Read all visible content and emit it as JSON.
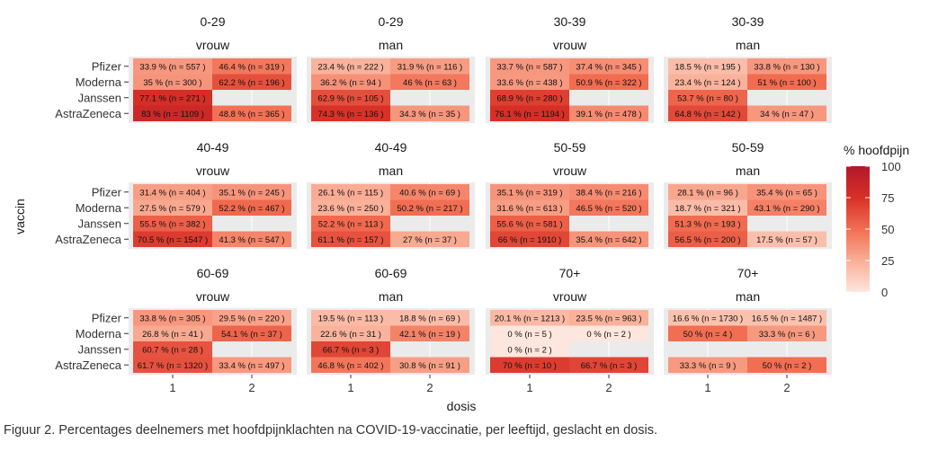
{
  "figure": {
    "caption": "Figuur 2. Percentages deelnemers met hoofdpijnklachten na COVID-19-vaccinatie, per leeftijd, geslacht en dosis."
  },
  "chart_data": {
    "type": "heatmap",
    "xlabel": "dosis",
    "ylabel": "vaccin",
    "x_categories": [
      "1",
      "2"
    ],
    "y_categories": [
      "Pfizer",
      "Moderna",
      "Janssen",
      "AstraZeneca"
    ],
    "legend": {
      "title": "% hoofdpijn",
      "ticks": [
        0,
        25,
        50,
        75,
        100
      ],
      "range": [
        0,
        100
      ],
      "color_low": "#fde6de",
      "color_high": "#b2182b",
      "position": "right"
    },
    "panels": [
      {
        "age": "0-29",
        "sex": "vrouw",
        "cells": [
          {
            "vaccine": "Pfizer",
            "dose": "1",
            "pct": 33.9,
            "n": 557,
            "label": "33.9 % (n = 557 )"
          },
          {
            "vaccine": "Pfizer",
            "dose": "2",
            "pct": 46.4,
            "n": 319,
            "label": "46.4 % (n = 319 )"
          },
          {
            "vaccine": "Moderna",
            "dose": "1",
            "pct": 35,
            "n": 300,
            "label": "35 % (n = 300 )"
          },
          {
            "vaccine": "Moderna",
            "dose": "2",
            "pct": 62.2,
            "n": 196,
            "label": "62.2 % (n = 196 )"
          },
          {
            "vaccine": "Janssen",
            "dose": "1",
            "pct": 77.1,
            "n": 271,
            "label": "77.1 % (n = 271 )"
          },
          {
            "vaccine": "AstraZeneca",
            "dose": "1",
            "pct": 83,
            "n": 1109,
            "label": "83 % (n = 1109 )"
          },
          {
            "vaccine": "AstraZeneca",
            "dose": "2",
            "pct": 48.8,
            "n": 365,
            "label": "48.8 % (n = 365 )"
          }
        ]
      },
      {
        "age": "0-29",
        "sex": "man",
        "cells": [
          {
            "vaccine": "Pfizer",
            "dose": "1",
            "pct": 23.4,
            "n": 222,
            "label": "23.4 % (n = 222 )"
          },
          {
            "vaccine": "Pfizer",
            "dose": "2",
            "pct": 31.9,
            "n": 116,
            "label": "31.9 % (n = 116 )"
          },
          {
            "vaccine": "Moderna",
            "dose": "1",
            "pct": 36.2,
            "n": 94,
            "label": "36.2 % (n = 94 )"
          },
          {
            "vaccine": "Moderna",
            "dose": "2",
            "pct": 46,
            "n": 63,
            "label": "46 % (n = 63 )"
          },
          {
            "vaccine": "Janssen",
            "dose": "1",
            "pct": 62.9,
            "n": 105,
            "label": "62.9 % (n = 105 )"
          },
          {
            "vaccine": "AstraZeneca",
            "dose": "1",
            "pct": 74.3,
            "n": 136,
            "label": "74.3 % (n = 136 )"
          },
          {
            "vaccine": "AstraZeneca",
            "dose": "2",
            "pct": 34.3,
            "n": 35,
            "label": "34.3 % (n = 35 )"
          }
        ]
      },
      {
        "age": "30-39",
        "sex": "vrouw",
        "cells": [
          {
            "vaccine": "Pfizer",
            "dose": "1",
            "pct": 33.7,
            "n": 587,
            "label": "33.7 % (n = 587 )"
          },
          {
            "vaccine": "Pfizer",
            "dose": "2",
            "pct": 37.4,
            "n": 345,
            "label": "37.4 % (n = 345 )"
          },
          {
            "vaccine": "Moderna",
            "dose": "1",
            "pct": 33.6,
            "n": 438,
            "label": "33.6 % (n = 438 )"
          },
          {
            "vaccine": "Moderna",
            "dose": "2",
            "pct": 50.9,
            "n": 322,
            "label": "50.9 % (n = 322 )"
          },
          {
            "vaccine": "Janssen",
            "dose": "1",
            "pct": 68.9,
            "n": 280,
            "label": "68.9 % (n = 280 )"
          },
          {
            "vaccine": "AstraZeneca",
            "dose": "1",
            "pct": 76.1,
            "n": 1194,
            "label": "76.1 % (n = 1194 )"
          },
          {
            "vaccine": "AstraZeneca",
            "dose": "2",
            "pct": 39.1,
            "n": 478,
            "label": "39.1 % (n = 478 )"
          }
        ]
      },
      {
        "age": "30-39",
        "sex": "man",
        "cells": [
          {
            "vaccine": "Pfizer",
            "dose": "1",
            "pct": 18.5,
            "n": 195,
            "label": "18.5 % (n = 195 )"
          },
          {
            "vaccine": "Pfizer",
            "dose": "2",
            "pct": 33.8,
            "n": 130,
            "label": "33.8 % (n = 130 )"
          },
          {
            "vaccine": "Moderna",
            "dose": "1",
            "pct": 23.4,
            "n": 124,
            "label": "23.4 % (n = 124 )"
          },
          {
            "vaccine": "Moderna",
            "dose": "2",
            "pct": 51,
            "n": 100,
            "label": "51 % (n = 100 )"
          },
          {
            "vaccine": "Janssen",
            "dose": "1",
            "pct": 53.7,
            "n": 80,
            "label": "53.7 % (n = 80 )"
          },
          {
            "vaccine": "AstraZeneca",
            "dose": "1",
            "pct": 64.8,
            "n": 142,
            "label": "64.8 % (n = 142 )"
          },
          {
            "vaccine": "AstraZeneca",
            "dose": "2",
            "pct": 34,
            "n": 47,
            "label": "34 % (n = 47 )"
          }
        ]
      },
      {
        "age": "40-49",
        "sex": "vrouw",
        "cells": [
          {
            "vaccine": "Pfizer",
            "dose": "1",
            "pct": 31.4,
            "n": 404,
            "label": "31.4 % (n = 404 )"
          },
          {
            "vaccine": "Pfizer",
            "dose": "2",
            "pct": 35.1,
            "n": 245,
            "label": "35.1 % (n = 245 )"
          },
          {
            "vaccine": "Moderna",
            "dose": "1",
            "pct": 27.5,
            "n": 579,
            "label": "27.5 % (n = 579 )"
          },
          {
            "vaccine": "Moderna",
            "dose": "2",
            "pct": 52.2,
            "n": 467,
            "label": "52.2 % (n = 467 )"
          },
          {
            "vaccine": "Janssen",
            "dose": "1",
            "pct": 55.5,
            "n": 382,
            "label": "55.5 % (n = 382 )"
          },
          {
            "vaccine": "AstraZeneca",
            "dose": "1",
            "pct": 70.5,
            "n": 1547,
            "label": "70.5 % (n = 1547 )"
          },
          {
            "vaccine": "AstraZeneca",
            "dose": "2",
            "pct": 41.3,
            "n": 547,
            "label": "41.3 % (n = 547 )"
          }
        ]
      },
      {
        "age": "40-49",
        "sex": "man",
        "cells": [
          {
            "vaccine": "Pfizer",
            "dose": "1",
            "pct": 26.1,
            "n": 115,
            "label": "26.1 % (n = 115 )"
          },
          {
            "vaccine": "Pfizer",
            "dose": "2",
            "pct": 40.6,
            "n": 69,
            "label": "40.6 % (n = 69 )"
          },
          {
            "vaccine": "Moderna",
            "dose": "1",
            "pct": 23.6,
            "n": 250,
            "label": "23.6 % (n = 250 )"
          },
          {
            "vaccine": "Moderna",
            "dose": "2",
            "pct": 50.2,
            "n": 217,
            "label": "50.2 % (n = 217 )"
          },
          {
            "vaccine": "Janssen",
            "dose": "1",
            "pct": 52.2,
            "n": 113,
            "label": "52.2 % (n = 113 )"
          },
          {
            "vaccine": "AstraZeneca",
            "dose": "1",
            "pct": 61.1,
            "n": 157,
            "label": "61.1 % (n = 157 )"
          },
          {
            "vaccine": "AstraZeneca",
            "dose": "2",
            "pct": 27,
            "n": 37,
            "label": "27 % (n = 37 )"
          }
        ]
      },
      {
        "age": "50-59",
        "sex": "vrouw",
        "cells": [
          {
            "vaccine": "Pfizer",
            "dose": "1",
            "pct": 35.1,
            "n": 319,
            "label": "35.1 % (n = 319 )"
          },
          {
            "vaccine": "Pfizer",
            "dose": "2",
            "pct": 38.4,
            "n": 216,
            "label": "38.4 % (n = 216 )"
          },
          {
            "vaccine": "Moderna",
            "dose": "1",
            "pct": 31.6,
            "n": 613,
            "label": "31.6 % (n = 613 )"
          },
          {
            "vaccine": "Moderna",
            "dose": "2",
            "pct": 46.5,
            "n": 520,
            "label": "46.5 % (n = 520 )"
          },
          {
            "vaccine": "Janssen",
            "dose": "1",
            "pct": 55.6,
            "n": 581,
            "label": "55.6 % (n = 581 )"
          },
          {
            "vaccine": "AstraZeneca",
            "dose": "1",
            "pct": 66,
            "n": 1910,
            "label": "66 % (n = 1910 )"
          },
          {
            "vaccine": "AstraZeneca",
            "dose": "2",
            "pct": 35.4,
            "n": 642,
            "label": "35.4 % (n = 642 )"
          }
        ]
      },
      {
        "age": "50-59",
        "sex": "man",
        "cells": [
          {
            "vaccine": "Pfizer",
            "dose": "1",
            "pct": 28.1,
            "n": 96,
            "label": "28.1 % (n = 96 )"
          },
          {
            "vaccine": "Pfizer",
            "dose": "2",
            "pct": 35.4,
            "n": 65,
            "label": "35.4 % (n = 65 )"
          },
          {
            "vaccine": "Moderna",
            "dose": "1",
            "pct": 18.7,
            "n": 321,
            "label": "18.7 % (n = 321 )"
          },
          {
            "vaccine": "Moderna",
            "dose": "2",
            "pct": 43.1,
            "n": 290,
            "label": "43.1 % (n = 290 )"
          },
          {
            "vaccine": "Janssen",
            "dose": "1",
            "pct": 51.3,
            "n": 193,
            "label": "51.3 % (n = 193 )"
          },
          {
            "vaccine": "AstraZeneca",
            "dose": "1",
            "pct": 56.5,
            "n": 200,
            "label": "56.5 % (n = 200 )"
          },
          {
            "vaccine": "AstraZeneca",
            "dose": "2",
            "pct": 17.5,
            "n": 57,
            "label": "17.5 % (n = 57 )"
          }
        ]
      },
      {
        "age": "60-69",
        "sex": "vrouw",
        "cells": [
          {
            "vaccine": "Pfizer",
            "dose": "1",
            "pct": 33.8,
            "n": 305,
            "label": "33.8 % (n = 305 )"
          },
          {
            "vaccine": "Pfizer",
            "dose": "2",
            "pct": 29.5,
            "n": 220,
            "label": "29.5 % (n = 220 )"
          },
          {
            "vaccine": "Moderna",
            "dose": "1",
            "pct": 26.8,
            "n": 41,
            "label": "26.8 % (n = 41 )"
          },
          {
            "vaccine": "Moderna",
            "dose": "2",
            "pct": 54.1,
            "n": 37,
            "label": "54.1 % (n = 37 )"
          },
          {
            "vaccine": "Janssen",
            "dose": "1",
            "pct": 60.7,
            "n": 28,
            "label": "60.7 % (n = 28 )"
          },
          {
            "vaccine": "AstraZeneca",
            "dose": "1",
            "pct": 61.7,
            "n": 1320,
            "label": "61.7 % (n = 1320 )"
          },
          {
            "vaccine": "AstraZeneca",
            "dose": "2",
            "pct": 33.4,
            "n": 497,
            "label": "33.4 % (n = 497 )"
          }
        ]
      },
      {
        "age": "60-69",
        "sex": "man",
        "cells": [
          {
            "vaccine": "Pfizer",
            "dose": "1",
            "pct": 19.5,
            "n": 113,
            "label": "19.5 % (n = 113 )"
          },
          {
            "vaccine": "Pfizer",
            "dose": "2",
            "pct": 18.8,
            "n": 69,
            "label": "18.8 % (n = 69 )"
          },
          {
            "vaccine": "Moderna",
            "dose": "1",
            "pct": 22.6,
            "n": 31,
            "label": "22.6 % (n = 31 )"
          },
          {
            "vaccine": "Moderna",
            "dose": "2",
            "pct": 42.1,
            "n": 19,
            "label": "42.1 % (n = 19 )"
          },
          {
            "vaccine": "Janssen",
            "dose": "1",
            "pct": 66.7,
            "n": 3,
            "label": "66.7 % (n = 3 )"
          },
          {
            "vaccine": "AstraZeneca",
            "dose": "1",
            "pct": 46.8,
            "n": 402,
            "label": "46.8 % (n = 402 )"
          },
          {
            "vaccine": "AstraZeneca",
            "dose": "2",
            "pct": 30.8,
            "n": 91,
            "label": "30.8 % (n = 91 )"
          }
        ]
      },
      {
        "age": "70+",
        "sex": "vrouw",
        "cells": [
          {
            "vaccine": "Pfizer",
            "dose": "1",
            "pct": 20.1,
            "n": 1213,
            "label": "20.1 % (n = 1213 )"
          },
          {
            "vaccine": "Pfizer",
            "dose": "2",
            "pct": 23.5,
            "n": 963,
            "label": "23.5 % (n = 963 )"
          },
          {
            "vaccine": "Moderna",
            "dose": "1",
            "pct": 0,
            "n": 5,
            "label": "0 % (n = 5 )"
          },
          {
            "vaccine": "Moderna",
            "dose": "2",
            "pct": 0,
            "n": 2,
            "label": "0 % (n = 2 )"
          },
          {
            "vaccine": "Janssen",
            "dose": "1",
            "pct": 0,
            "n": 2,
            "label": "0 % (n = 2 )"
          },
          {
            "vaccine": "AstraZeneca",
            "dose": "1",
            "pct": 70,
            "n": 10,
            "label": "70 % (n = 10 )"
          },
          {
            "vaccine": "AstraZeneca",
            "dose": "2",
            "pct": 66.7,
            "n": 3,
            "label": "66.7 % (n = 3 )"
          }
        ]
      },
      {
        "age": "70+",
        "sex": "man",
        "cells": [
          {
            "vaccine": "Pfizer",
            "dose": "1",
            "pct": 16.6,
            "n": 1730,
            "label": "16.6 % (n = 1730 )"
          },
          {
            "vaccine": "Pfizer",
            "dose": "2",
            "pct": 16.5,
            "n": 1487,
            "label": "16.5 % (n = 1487 )"
          },
          {
            "vaccine": "Moderna",
            "dose": "1",
            "pct": 50,
            "n": 4,
            "label": "50 % (n = 4 )"
          },
          {
            "vaccine": "Moderna",
            "dose": "2",
            "pct": 33.3,
            "n": 6,
            "label": "33.3 % (n = 6 )"
          },
          {
            "vaccine": "AstraZeneca",
            "dose": "1",
            "pct": 33.3,
            "n": 9,
            "label": "33.3 % (n = 9 )"
          },
          {
            "vaccine": "AstraZeneca",
            "dose": "2",
            "pct": 50,
            "n": 2,
            "label": "50 % (n = 2 )"
          }
        ]
      }
    ]
  }
}
